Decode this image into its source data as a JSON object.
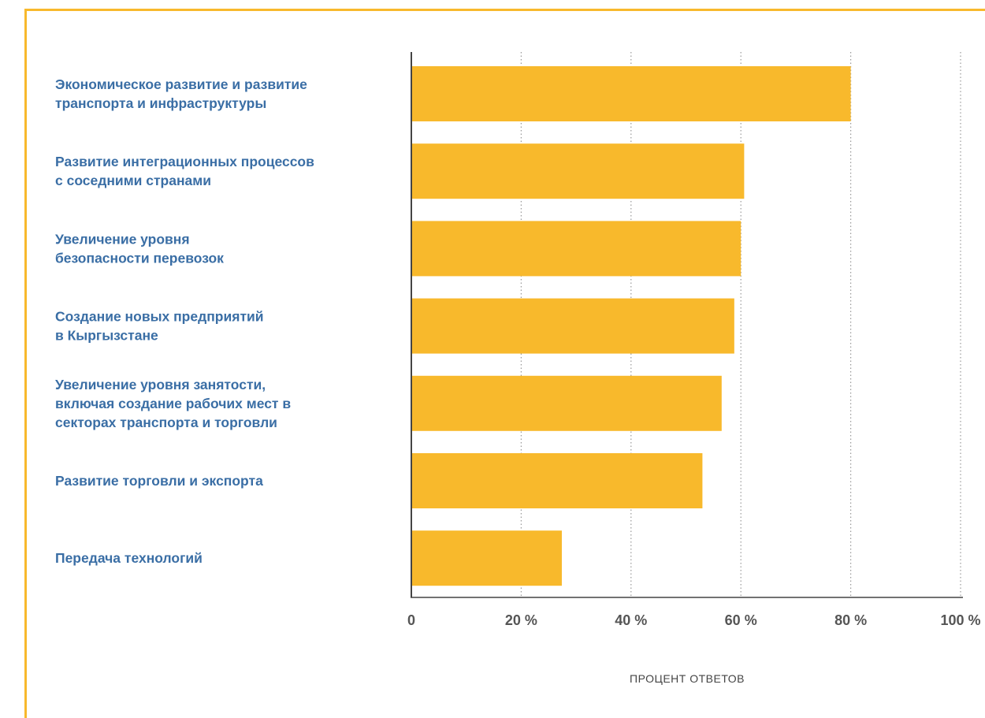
{
  "chart_data": {
    "type": "bar",
    "orientation": "horizontal",
    "categories": [
      [
        "Экономическое развитие и развитие",
        "транспорта и инфраструктуры"
      ],
      [
        "Развитие интеграционных процессов",
        "с соседними странами"
      ],
      [
        "Увеличение уровня",
        "безопасности перевозок"
      ],
      [
        "Создание новых предприятий",
        "в Кыргызстане"
      ],
      [
        "Увеличение уровня занятости,",
        "включая создание рабочих мест в",
        "секторах транспорта и торговли"
      ],
      [
        "Развитие торговли и экспорта"
      ],
      [
        "Передача технологий"
      ]
    ],
    "values": [
      80,
      60.6,
      60,
      58.8,
      56.5,
      53,
      27.4
    ],
    "xlim": [
      0,
      100
    ],
    "xticks": [
      0,
      20,
      40,
      60,
      80,
      100
    ],
    "xtick_labels": [
      "0",
      "20 %",
      "40 %",
      "60 %",
      "80 %",
      "100 %"
    ],
    "xlabel": "ПРОЦЕНТ ОТВЕТОВ",
    "grid": "vertical-dotted",
    "colors": {
      "bar": "#f8b92c",
      "frame": "#f8b92c",
      "category_text": "#3a6ea5",
      "tick_text": "#555555",
      "axis_line": "#444444",
      "grid": "#999999"
    }
  }
}
